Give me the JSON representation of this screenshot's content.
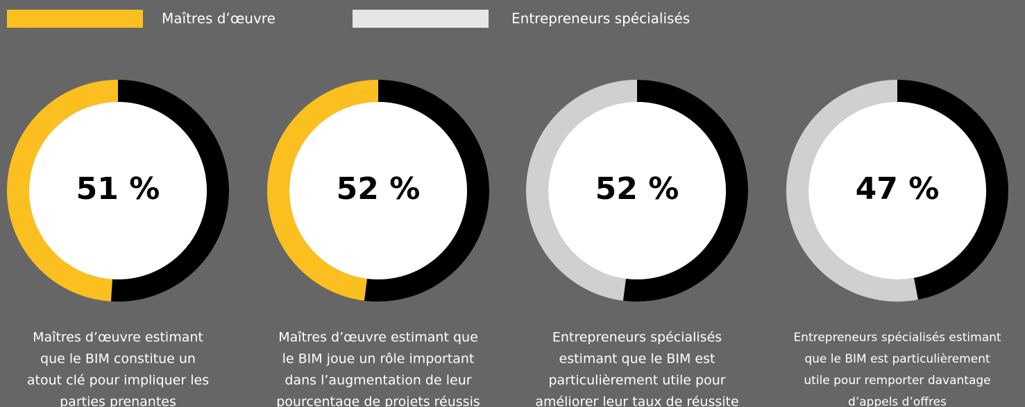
{
  "legend": [
    {
      "name": "Maîtres d’œuvre",
      "color": "#fbbf1f"
    },
    {
      "name": "Entrepreneurs spécialisés",
      "color": "#e6e6e6"
    }
  ],
  "chart_data": [
    {
      "type": "donut",
      "value": 51,
      "value_label": "51 %",
      "color": "#000000",
      "rest_color": "#fbbf1f",
      "caption": [
        "Maîtres d’œuvre estimant",
        "que le BIM constitue un",
        "atout clé pour impliquer les",
        "parties prenantes"
      ]
    },
    {
      "type": "donut",
      "value": 52,
      "value_label": "52 %",
      "color": "#000000",
      "rest_color": "#fbbf1f",
      "caption": [
        "Maîtres d’œuvre estimant que",
        "le BIM joue un rôle important",
        "dans l’augmentation de leur",
        "pourcentage de projets réussis"
      ]
    },
    {
      "type": "donut",
      "value": 52,
      "value_label": "52 %",
      "color": "#000000",
      "rest_color": "#d0d0d0",
      "caption": [
        "Entrepreneurs spécialisés",
        "estimant que le BIM est",
        "particulièrement utile pour",
        "améliorer leur taux de réussite"
      ]
    },
    {
      "type": "donut",
      "value": 47,
      "value_label": "47 %",
      "color": "#000000",
      "rest_color": "#d0d0d0",
      "caption": [
        "Entrepreneurs spécialisés estimant",
        "que le BIM est particulièrement",
        "utile pour remporter davantage",
        "d’appels d’offres"
      ]
    }
  ]
}
